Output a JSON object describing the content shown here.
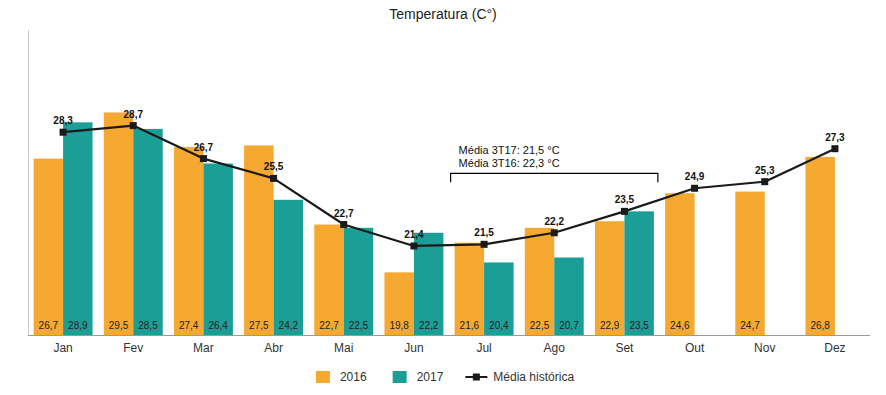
{
  "chart_data": {
    "type": "bar",
    "title": "Temperatura (C°)",
    "categories": [
      "Jan",
      "Fev",
      "Mar",
      "Abr",
      "Mai",
      "Jun",
      "Jul",
      "Ago",
      "Set",
      "Out",
      "Nov",
      "Dez"
    ],
    "series": [
      {
        "name": "2016",
        "type": "bar",
        "color": "#F5A930",
        "values": [
          26.7,
          29.5,
          27.4,
          27.5,
          22.7,
          19.8,
          21.6,
          22.5,
          22.9,
          24.6,
          24.7,
          26.8
        ],
        "value_labels": [
          "26,7",
          "29,5",
          "27,4",
          "27,5",
          "22,7",
          "19,8",
          "21,6",
          "22,5",
          "22,9",
          "24,6",
          "24,7",
          "26,8"
        ]
      },
      {
        "name": "2017",
        "type": "bar",
        "color": "#1A9E96",
        "values": [
          28.9,
          28.5,
          26.4,
          24.2,
          22.5,
          22.2,
          20.4,
          20.7,
          23.5,
          null,
          null,
          null
        ],
        "value_labels": [
          "28,9",
          "28,5",
          "26,4",
          "24,2",
          "22,5",
          "22,2",
          "20,4",
          "20,7",
          "23,5",
          null,
          null,
          null
        ]
      },
      {
        "name": "Média histórica",
        "type": "line",
        "color": "#1A1A1A",
        "marker": "square",
        "values": [
          28.3,
          28.7,
          26.7,
          25.5,
          22.7,
          21.4,
          21.5,
          22.2,
          23.5,
          24.9,
          25.3,
          27.3
        ],
        "value_labels": [
          "28,3",
          "28,7",
          "26,7",
          "25,5",
          "22,7",
          "21,4",
          "21,5",
          "22,2",
          "23,5",
          "24,9",
          "25,3",
          "27,3"
        ]
      }
    ],
    "ylim": [
      16,
      34.5
    ],
    "tick_labels": "x",
    "grid": false,
    "legend": "bottom",
    "data_labels": true,
    "annotation": "Média 3T17: 21,5 °C\nMédia 3T16: 22,3 °C"
  }
}
